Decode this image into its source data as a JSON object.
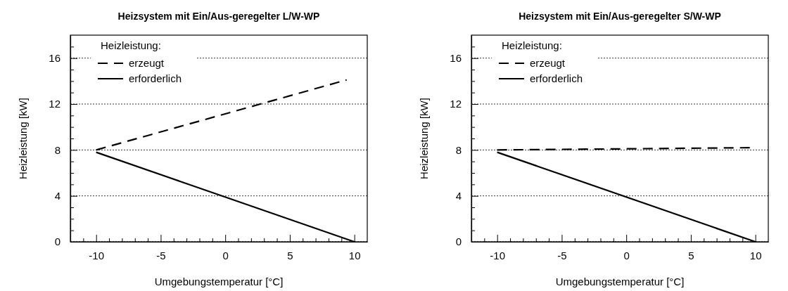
{
  "chart_data": [
    {
      "type": "line",
      "title": "Heizsystem mit Ein/Aus-geregelter L/W-WP",
      "xlabel": "Umgebungstemperatur [°C]",
      "ylabel": "Heizleistung  [kW]",
      "legend_title": "Heizleistung:",
      "legend": "top left",
      "grid": "y",
      "xlim": [
        -12,
        11
      ],
      "ylim": [
        0,
        18
      ],
      "xticks": [
        {
          "value": -12,
          "label": null
        },
        {
          "value": -11,
          "label": null
        },
        -10,
        {
          "value": -9,
          "label": null
        },
        {
          "value": -8,
          "label": null
        },
        {
          "value": -7,
          "label": null
        },
        {
          "value": -6,
          "label": null
        },
        -5,
        {
          "value": -4,
          "label": null
        },
        {
          "value": -3,
          "label": null
        },
        {
          "value": -2,
          "label": null
        },
        {
          "value": -1,
          "label": null
        },
        0,
        {
          "value": 1,
          "label": null
        },
        {
          "value": 2,
          "label": null
        },
        {
          "value": 3,
          "label": null
        },
        {
          "value": 4,
          "label": null
        },
        5,
        {
          "value": 6,
          "label": null
        },
        {
          "value": 7,
          "label": null
        },
        {
          "value": 8,
          "label": null
        },
        {
          "value": 9,
          "label": null
        },
        10
      ],
      "yticks": [
        0,
        {
          "value": 1,
          "label": null
        },
        {
          "value": 2,
          "label": null
        },
        {
          "value": 3,
          "label": null
        },
        4,
        {
          "value": 5,
          "label": null
        },
        {
          "value": 6,
          "label": null
        },
        {
          "value": 7,
          "label": null
        },
        8,
        {
          "value": 9,
          "label": null
        },
        {
          "value": 10,
          "label": null
        },
        {
          "value": 11,
          "label": null
        },
        12,
        {
          "value": 13,
          "label": null
        },
        {
          "value": 14,
          "label": null
        },
        {
          "value": 15,
          "label": null
        },
        16,
        {
          "value": 17,
          "label": null
        }
      ],
      "series": [
        {
          "name": "erzeugt",
          "color": "#000000",
          "line_style": "dashed",
          "x": [
            -10,
            9.4
          ],
          "values": [
            8,
            14.1
          ]
        },
        {
          "name": "erforderlich",
          "color": "#000000",
          "line_style": "solid",
          "x": [
            -10,
            10
          ],
          "values": [
            7.8,
            0
          ]
        }
      ]
    },
    {
      "type": "line",
      "title": "Heizsystem mit Ein/Aus-geregelter S/W-WP",
      "xlabel": "Umgebungstemperatur [°C]",
      "ylabel": "Heizleistung  [kW]",
      "legend_title": "Heizleistung:",
      "legend": "top left",
      "grid": "y",
      "xlim": [
        -12,
        11
      ],
      "ylim": [
        0,
        18
      ],
      "xticks": [
        {
          "value": -12,
          "label": null
        },
        {
          "value": -11,
          "label": null
        },
        -10,
        {
          "value": -9,
          "label": null
        },
        {
          "value": -8,
          "label": null
        },
        {
          "value": -7,
          "label": null
        },
        {
          "value": -6,
          "label": null
        },
        -5,
        {
          "value": -4,
          "label": null
        },
        {
          "value": -3,
          "label": null
        },
        {
          "value": -2,
          "label": null
        },
        {
          "value": -1,
          "label": null
        },
        0,
        {
          "value": 1,
          "label": null
        },
        {
          "value": 2,
          "label": null
        },
        {
          "value": 3,
          "label": null
        },
        {
          "value": 4,
          "label": null
        },
        5,
        {
          "value": 6,
          "label": null
        },
        {
          "value": 7,
          "label": null
        },
        {
          "value": 8,
          "label": null
        },
        {
          "value": 9,
          "label": null
        },
        10
      ],
      "yticks": [
        0,
        {
          "value": 1,
          "label": null
        },
        {
          "value": 2,
          "label": null
        },
        {
          "value": 3,
          "label": null
        },
        4,
        {
          "value": 5,
          "label": null
        },
        {
          "value": 6,
          "label": null
        },
        {
          "value": 7,
          "label": null
        },
        8,
        {
          "value": 9,
          "label": null
        },
        {
          "value": 10,
          "label": null
        },
        {
          "value": 11,
          "label": null
        },
        12,
        {
          "value": 13,
          "label": null
        },
        {
          "value": 14,
          "label": null
        },
        {
          "value": 15,
          "label": null
        },
        16,
        {
          "value": 17,
          "label": null
        }
      ],
      "series": [
        {
          "name": "erzeugt",
          "color": "#000000",
          "line_style": "dashed",
          "x": [
            -10,
            10
          ],
          "values": [
            8,
            8.2
          ]
        },
        {
          "name": "erforderlich",
          "color": "#000000",
          "line_style": "solid",
          "x": [
            -10,
            10
          ],
          "values": [
            7.8,
            0
          ]
        }
      ]
    }
  ]
}
